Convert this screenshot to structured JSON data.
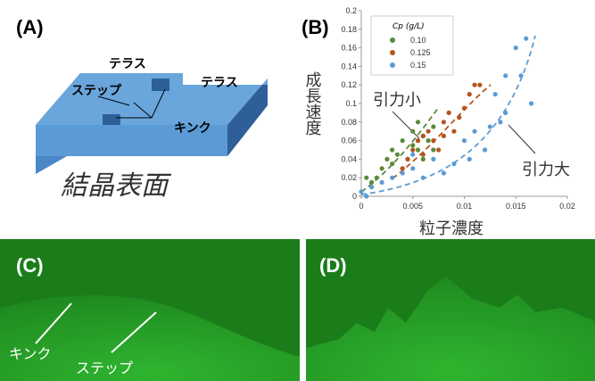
{
  "panels": {
    "a": {
      "label": "(A)",
      "terrace_left": "テラス",
      "terrace_right": "テラス",
      "step": "ステップ",
      "kink": "キンク",
      "caption": "結晶表面"
    },
    "c": {
      "label": "(C)",
      "kink": "キンク",
      "step": "ステップ"
    },
    "d": {
      "label": "(D)"
    }
  },
  "chart_data": {
    "type": "scatter",
    "panel_label": "(B)",
    "y_label": "成長速度",
    "x_label": "粒子濃度",
    "legend_title": "Cp (g/L)",
    "annotations": [
      "引力小",
      "引力大"
    ],
    "xlim": [
      0,
      0.02
    ],
    "xticks": [
      0,
      0.005,
      0.01,
      0.015,
      0.02
    ],
    "ylim": [
      0,
      0.2
    ],
    "yticks": [
      0,
      0.02,
      0.04,
      0.06,
      0.08,
      0.1,
      0.12,
      0.14,
      0.16,
      0.18,
      0.2
    ],
    "series": [
      {
        "name": "0.10",
        "color": "#5a8a3a",
        "x": [
          0.0005,
          0.001,
          0.0015,
          0.002,
          0.0025,
          0.003,
          0.003,
          0.0035,
          0.004,
          0.004,
          0.0045,
          0.005,
          0.005,
          0.0055,
          0.006,
          0.006,
          0.0065,
          0.007,
          0.007,
          0.0055
        ],
        "values": [
          0.02,
          0.015,
          0.02,
          0.03,
          0.04,
          0.035,
          0.05,
          0.045,
          0.06,
          0.03,
          0.04,
          0.055,
          0.07,
          0.05,
          0.065,
          0.04,
          0.06,
          0.075,
          0.05,
          0.08
        ]
      },
      {
        "name": "0.125",
        "color": "#b5541c",
        "x": [
          0.004,
          0.0045,
          0.005,
          0.0055,
          0.006,
          0.006,
          0.0065,
          0.007,
          0.0075,
          0.008,
          0.008,
          0.0085,
          0.009,
          0.0095,
          0.01,
          0.0105,
          0.011,
          0.0115
        ],
        "values": [
          0.03,
          0.04,
          0.05,
          0.06,
          0.045,
          0.065,
          0.07,
          0.06,
          0.05,
          0.08,
          0.065,
          0.09,
          0.07,
          0.085,
          0.095,
          0.11,
          0.12,
          0.12
        ]
      },
      {
        "name": "0.15",
        "color": "#5b9bd5",
        "x": [
          0,
          0.0005,
          0.001,
          0.002,
          0.003,
          0.004,
          0.005,
          0.005,
          0.006,
          0.007,
          0.008,
          0.009,
          0.01,
          0.0105,
          0.011,
          0.012,
          0.0125,
          0.013,
          0.0135,
          0.014,
          0.014,
          0.015,
          0.0155,
          0.016,
          0.0165
        ],
        "values": [
          0.005,
          0,
          0.01,
          0.015,
          0.02,
          0.025,
          0.03,
          0.045,
          0.02,
          0.04,
          0.025,
          0.035,
          0.06,
          0.04,
          0.07,
          0.05,
          0.075,
          0.11,
          0.08,
          0.13,
          0.09,
          0.16,
          0.13,
          0.17,
          0.1
        ]
      }
    ]
  }
}
